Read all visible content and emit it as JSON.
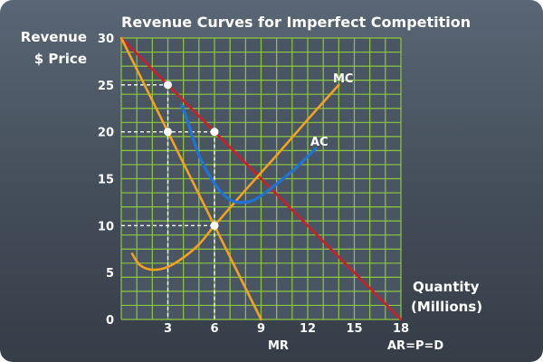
{
  "chart_data": {
    "type": "line",
    "title": "Revenue Curves for Imperfect Competition",
    "ylabel_lines": [
      "Revenue",
      "$ Price"
    ],
    "xlabel_lines": [
      "Quantity",
      "(Millions)"
    ],
    "xlim": [
      0,
      18
    ],
    "ylim": [
      0,
      30
    ],
    "x_ticks": [
      3,
      6,
      9,
      12,
      15,
      18
    ],
    "y_ticks": [
      0,
      5,
      10,
      15,
      20,
      25,
      30
    ],
    "grid": true,
    "series": [
      {
        "name": "AR=P=D",
        "color": "#cc1f2a",
        "points": [
          [
            0,
            30
          ],
          [
            18,
            0
          ]
        ]
      },
      {
        "name": "MR",
        "color": "#f2a21f",
        "points": [
          [
            0,
            30
          ],
          [
            9,
            0
          ]
        ]
      },
      {
        "name": "MC",
        "color": "#f2a21f",
        "points": [
          [
            0.7,
            7
          ],
          [
            1.2,
            5.8
          ],
          [
            2,
            5.3
          ],
          [
            3,
            5.6
          ],
          [
            4,
            6.6
          ],
          [
            5,
            8
          ],
          [
            6,
            10
          ],
          [
            8,
            13.8
          ],
          [
            10,
            17.5
          ],
          [
            12,
            21.3
          ],
          [
            14,
            25
          ]
        ]
      },
      {
        "name": "AC",
        "color": "#1f73d6",
        "points": [
          [
            3.9,
            22.8
          ],
          [
            4.3,
            21
          ],
          [
            5,
            17.5
          ],
          [
            6,
            14.5
          ],
          [
            6.8,
            13
          ],
          [
            7.5,
            12.5
          ],
          [
            8.5,
            12.7
          ],
          [
            9.5,
            13.8
          ],
          [
            11,
            15.8
          ],
          [
            12.5,
            18.2
          ]
        ]
      }
    ],
    "highlight_points": [
      [
        3,
        25
      ],
      [
        3,
        20
      ],
      [
        6,
        20
      ],
      [
        6,
        10
      ]
    ],
    "guides": [
      [
        [
          0,
          25
        ],
        [
          3,
          25
        ]
      ],
      [
        [
          0,
          20
        ],
        [
          6,
          20
        ]
      ],
      [
        [
          0,
          10
        ],
        [
          6,
          10
        ]
      ],
      [
        [
          3,
          25
        ],
        [
          3,
          0
        ]
      ],
      [
        [
          6,
          20
        ],
        [
          6,
          0
        ]
      ]
    ]
  },
  "colors": {
    "grid": "#8cc63f",
    "plot_bg": "#4a5563",
    "guide": "#ffffff",
    "point": "#ffffff"
  }
}
